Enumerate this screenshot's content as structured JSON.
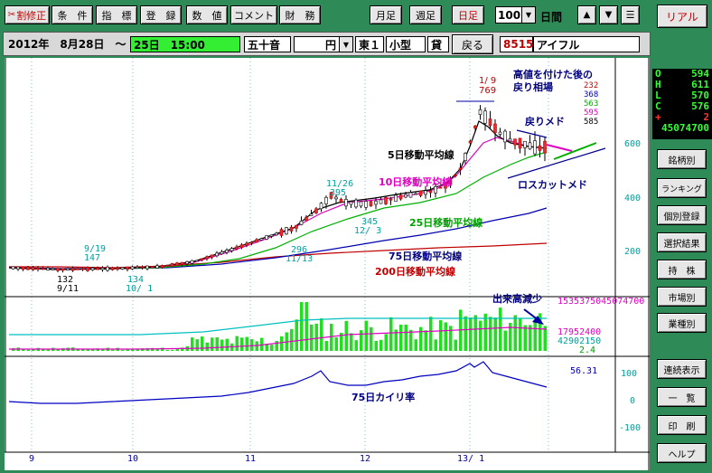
{
  "toolbar": {
    "buttons": [
      "割修正",
      "条　件",
      "指　標",
      "登　録",
      "数　値",
      "コメント",
      "財　務"
    ],
    "period_buttons": [
      "月足",
      "週足",
      "日足"
    ],
    "period_count": "100",
    "period_unit": "日間",
    "realtime_label": "リアル",
    "icons": {
      "edit": "scissors-icon",
      "up": "triangle-up-icon",
      "down": "triangle-down-icon",
      "menu": "menu-icon",
      "dropdown": "chevron-down-icon"
    }
  },
  "infobar": {
    "date": "2012年　8月28日　～",
    "range_end": "25日　15:00",
    "sort": "五十音",
    "currency": "円",
    "market": "東１",
    "cap": "小型",
    "loan": "貸",
    "back_label": "戻る",
    "code": "8515",
    "name": "アイフル"
  },
  "ohlc": {
    "rows": [
      {
        "label": "O",
        "value": "594"
      },
      {
        "label": "H",
        "value": "611"
      },
      {
        "label": "L",
        "value": "570"
      },
      {
        "label": "C",
        "value": "576"
      },
      {
        "label": "+",
        "value": "2"
      }
    ],
    "volume": "45074700"
  },
  "right_menu": [
    "銘柄別",
    "ランキング",
    "個別登録",
    "選択結果",
    "持　株",
    "市場別",
    "業種別",
    "連続表示",
    "一　覧",
    "印　刷",
    "ヘルプ"
  ],
  "chart": {
    "price_ticks": [
      "600",
      "400",
      "200"
    ],
    "osc_ticks": [
      "100",
      "0",
      "-100"
    ],
    "x_labels": [
      "9",
      "10",
      "11",
      "12",
      "13/ 1"
    ],
    "annotations": {
      "title": "高値を付けた後の",
      "title2": "戻り相場",
      "modori": "戻りメド",
      "losscut": "ロスカットメド",
      "ma5": "5日移動平均線",
      "ma10": "10日移動平均線",
      "ma25": "25日移動平均線",
      "ma75": "75日移動平均線",
      "ma200": "200日移動平均線",
      "volume_note": "出来高減少",
      "kairi": "75日カイリ率"
    },
    "ma_values": [
      "232",
      "368",
      "563",
      "595",
      "585"
    ],
    "price_marks": {
      "high_date": "1/ 9",
      "high": "769",
      "nov26_date": "11/26",
      "nov26": "395",
      "sep19_date": "9/19",
      "sep19": "147",
      "sep11": "132",
      "sep11_date": "9/11",
      "oct1": "134",
      "oct1_date": "10/ 1",
      "dec3": "345",
      "dec3_date": "12/ 3",
      "nov13": "296",
      "nov13_date": "11/13"
    },
    "volume_labels": {
      "max": "1535375045074700",
      "v1": "17952400",
      "v2": "42902150",
      "v3": "2.4"
    },
    "kairi_value": "56.31"
  }
}
